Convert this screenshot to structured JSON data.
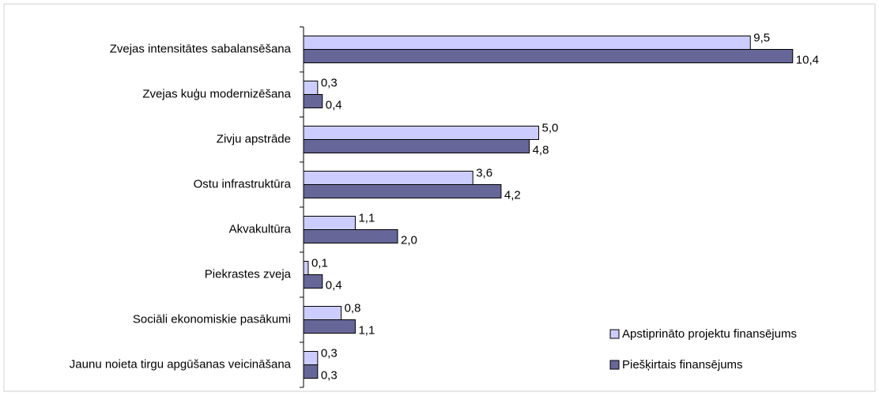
{
  "chart_data": {
    "type": "barh",
    "categories": [
      "Zvejas intensitātes sabalansēšana",
      "Zvejas kuģu modernizēšana",
      "Zivju apstrāde",
      "Ostu infrastruktūra",
      "Akvakultūra",
      "Piekrastes zveja",
      "Sociāli ekonomiskie pasākumi",
      "Jaunu noieta tirgu apgūšanas veicināšana"
    ],
    "series": [
      {
        "name": "Apstiprināto projektu finansējums",
        "color": "#ccccff",
        "values": [
          9.5,
          0.3,
          5.0,
          3.6,
          1.1,
          0.1,
          0.8,
          0.3
        ],
        "value_labels": [
          "9,5",
          "0,3",
          "5,0",
          "3,6",
          "1,1",
          "0,1",
          "0,8",
          "0,3"
        ]
      },
      {
        "name": "Piešķirtais finansējums",
        "color": "#666699",
        "values": [
          10.4,
          0.4,
          4.8,
          4.2,
          2.0,
          0.4,
          1.1,
          0.3
        ],
        "value_labels": [
          "10,4",
          "0,4",
          "4,8",
          "4,2",
          "2,0",
          "0,4",
          "1,1",
          "0,3"
        ]
      }
    ],
    "xlim": [
      0,
      12
    ],
    "legend": "bottom-right"
  }
}
